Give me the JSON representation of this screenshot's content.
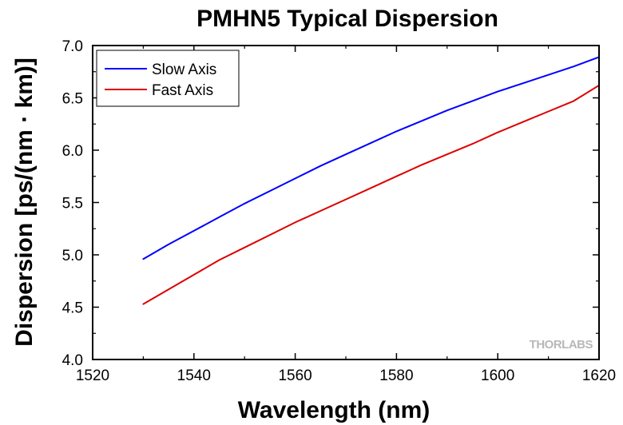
{
  "chart_data": {
    "type": "line",
    "title": "PMHN5 Typical Dispersion",
    "xlabel": "Wavelength (nm)",
    "ylabel": "Dispersion [ps/(nm · km)]",
    "xlim": [
      1520,
      1620
    ],
    "ylim": [
      4.0,
      7.0
    ],
    "xticks": [
      1520,
      1540,
      1560,
      1580,
      1600,
      1620
    ],
    "yticks": [
      4.0,
      4.5,
      5.0,
      5.5,
      6.0,
      6.5,
      7.0
    ],
    "xtick_labels": [
      "1520",
      "1540",
      "1560",
      "1580",
      "1600",
      "1620"
    ],
    "ytick_labels": [
      "4.0",
      "4.5",
      "5.0",
      "5.5",
      "6.0",
      "6.5",
      "7.0"
    ],
    "grid": false,
    "legend_position": "top-left",
    "series": [
      {
        "name": "Slow Axis",
        "color": "#0000ff",
        "x": [
          1530,
          1535,
          1540,
          1545,
          1550,
          1555,
          1560,
          1565,
          1570,
          1575,
          1580,
          1585,
          1590,
          1595,
          1600,
          1605,
          1610,
          1615,
          1620
        ],
        "y": [
          4.96,
          5.1,
          5.23,
          5.36,
          5.49,
          5.61,
          5.73,
          5.85,
          5.96,
          6.07,
          6.18,
          6.28,
          6.38,
          6.47,
          6.56,
          6.64,
          6.72,
          6.8,
          6.89
        ]
      },
      {
        "name": "Fast Axis",
        "color": "#dd0000",
        "x": [
          1530,
          1535,
          1540,
          1545,
          1550,
          1555,
          1560,
          1565,
          1570,
          1575,
          1580,
          1585,
          1590,
          1595,
          1600,
          1605,
          1610,
          1615,
          1620
        ],
        "y": [
          4.53,
          4.67,
          4.81,
          4.95,
          5.07,
          5.19,
          5.31,
          5.42,
          5.53,
          5.64,
          5.75,
          5.86,
          5.96,
          6.06,
          6.17,
          6.27,
          6.37,
          6.47,
          6.62
        ]
      }
    ]
  },
  "watermark": "THORLABS"
}
